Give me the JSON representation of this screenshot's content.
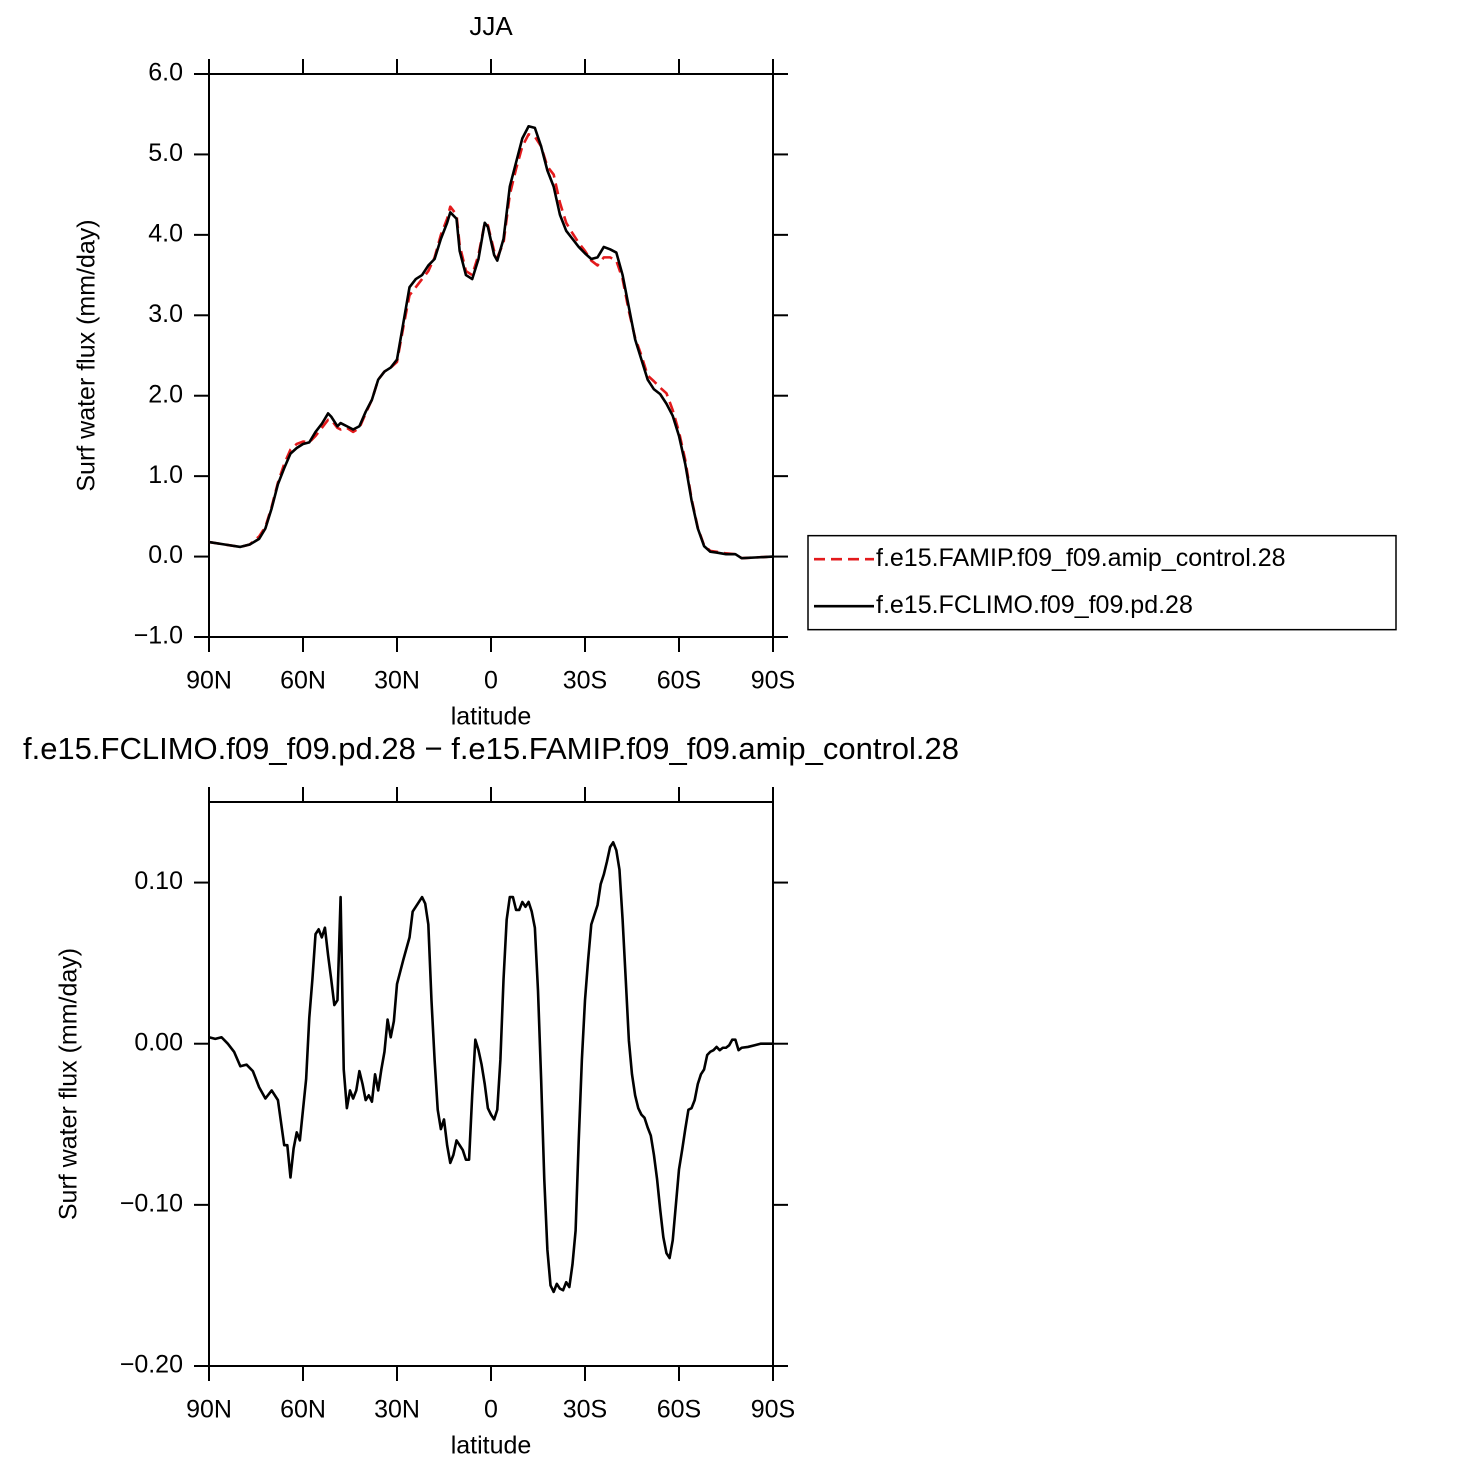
{
  "chart_data": [
    {
      "type": "line",
      "title": "JJA",
      "xlabel": "latitude",
      "ylabel": "Surf water flux (mm/day)",
      "xlim": [
        90,
        -90
      ],
      "ylim": [
        -1,
        6
      ],
      "xticks": [
        {
          "value": 90,
          "label": "90N"
        },
        {
          "value": 60,
          "label": "60N"
        },
        {
          "value": 30,
          "label": "30N"
        },
        0,
        {
          "value": -30,
          "label": "30S"
        },
        {
          "value": -60,
          "label": "60S"
        },
        {
          "value": -90,
          "label": "90S"
        }
      ],
      "yticks": [
        {
          "value": -1,
          "label": "−1.0"
        },
        {
          "value": 0,
          "label": "0.0"
        },
        {
          "value": 1,
          "label": "1.0"
        },
        {
          "value": 2,
          "label": "2.0"
        },
        {
          "value": 3,
          "label": "3.0"
        },
        {
          "value": 4,
          "label": "4.0"
        },
        {
          "value": 5,
          "label": "5.0"
        },
        {
          "value": 6,
          "label": "6.0"
        }
      ],
      "legend": "right",
      "x": [
        90,
        85,
        80,
        77,
        74,
        72,
        70,
        68,
        66,
        64,
        62,
        60,
        58,
        56,
        54,
        52,
        51,
        49,
        48,
        46,
        44,
        42,
        40,
        38,
        36,
        34,
        32,
        30,
        28,
        26,
        24,
        22,
        20,
        18,
        16,
        14,
        13,
        11,
        10,
        8,
        6,
        4,
        2,
        1,
        -1,
        -2,
        -4,
        -6,
        -8,
        -10,
        -12,
        -14,
        -16,
        -18,
        -20,
        -22,
        -24,
        -26,
        -28,
        -30,
        -32,
        -34,
        -36,
        -38,
        -40,
        -42,
        -44,
        -46,
        -48,
        -50,
        -52,
        -54,
        -56,
        -58,
        -60,
        -62,
        -64,
        -66,
        -68,
        -70,
        -72,
        -75,
        -78,
        -80,
        -85,
        -90
      ],
      "series": [
        {
          "name": "f.e15.FAMIP.f09_f09.amip_control.28",
          "color": "#e31a1c",
          "dashed": true,
          "values": [
            0.18,
            0.15,
            0.12,
            0.15,
            0.25,
            0.37,
            0.62,
            0.92,
            1.15,
            1.33,
            1.4,
            1.43,
            1.42,
            1.5,
            1.6,
            1.7,
            1.7,
            1.6,
            1.58,
            1.6,
            1.55,
            1.6,
            1.78,
            1.95,
            2.2,
            2.3,
            2.35,
            2.42,
            2.85,
            3.25,
            3.35,
            3.45,
            3.55,
            3.72,
            4.0,
            4.2,
            4.35,
            4.25,
            3.87,
            3.55,
            3.5,
            3.75,
            4.15,
            4.12,
            3.8,
            3.72,
            3.9,
            4.5,
            4.82,
            5.1,
            5.25,
            5.22,
            5.1,
            4.85,
            4.75,
            4.4,
            4.15,
            4.02,
            3.9,
            3.8,
            3.68,
            3.62,
            3.72,
            3.72,
            3.68,
            3.45,
            3.05,
            2.72,
            2.5,
            2.25,
            2.18,
            2.1,
            2.03,
            1.82,
            1.55,
            1.2,
            0.72,
            0.36,
            0.14,
            0.07,
            0.06,
            0.04,
            0.03,
            -0.02,
            -0.01,
            0.0
          ]
        },
        {
          "name": "f.e15.FCLIMO.f09_f09.pd.28",
          "color": "#000000",
          "dashed": false,
          "values": [
            0.18,
            0.15,
            0.12,
            0.15,
            0.22,
            0.35,
            0.6,
            0.9,
            1.1,
            1.28,
            1.35,
            1.4,
            1.42,
            1.55,
            1.65,
            1.78,
            1.74,
            1.62,
            1.66,
            1.62,
            1.58,
            1.62,
            1.8,
            1.95,
            2.2,
            2.3,
            2.35,
            2.45,
            2.9,
            3.35,
            3.45,
            3.5,
            3.62,
            3.7,
            3.95,
            4.15,
            4.28,
            4.2,
            3.8,
            3.5,
            3.45,
            3.7,
            4.15,
            4.1,
            3.75,
            3.68,
            3.95,
            4.6,
            4.9,
            5.2,
            5.35,
            5.33,
            5.1,
            4.8,
            4.6,
            4.25,
            4.05,
            3.95,
            3.85,
            3.77,
            3.7,
            3.72,
            3.85,
            3.82,
            3.78,
            3.5,
            3.1,
            2.7,
            2.45,
            2.2,
            2.08,
            2.02,
            1.9,
            1.75,
            1.5,
            1.15,
            0.7,
            0.35,
            0.13,
            0.06,
            0.05,
            0.03,
            0.03,
            -0.02,
            -0.01,
            0.0
          ]
        }
      ]
    },
    {
      "type": "line",
      "title": "f.e15.FCLIMO.f09_f09.pd.28 − f.e15.FAMIP.f09_f09.amip_control.28",
      "xlabel": "latitude",
      "ylabel": "Surf water flux (mm/day)",
      "xlim": [
        90,
        -90
      ],
      "ylim": [
        -0.2,
        0.15
      ],
      "xticks": [
        {
          "value": 90,
          "label": "90N"
        },
        {
          "value": 60,
          "label": "60N"
        },
        {
          "value": 30,
          "label": "30N"
        },
        0,
        {
          "value": -30,
          "label": "30S"
        },
        {
          "value": -60,
          "label": "60S"
        },
        {
          "value": -90,
          "label": "90S"
        }
      ],
      "yticks": [
        {
          "value": -0.2,
          "label": "−0.20"
        },
        {
          "value": -0.1,
          "label": "−0.10"
        },
        {
          "value": 0,
          "label": "0.00"
        },
        {
          "value": 0.1,
          "label": "0.10"
        }
      ],
      "color": "#000000",
      "x": [
        90,
        88,
        86,
        84,
        82,
        80,
        78,
        76,
        74,
        72,
        70,
        68,
        66,
        65,
        64,
        63,
        62,
        61,
        59,
        58,
        57,
        56,
        55,
        54,
        53,
        52,
        51,
        50,
        49,
        48,
        47,
        46,
        45,
        44,
        43,
        42,
        41,
        40,
        39,
        38,
        37,
        36,
        35,
        34,
        33,
        32,
        31,
        30,
        28,
        26,
        25,
        23,
        22,
        21,
        20,
        19,
        18,
        17,
        16,
        15,
        14,
        13,
        12,
        11,
        10,
        9,
        8,
        7,
        6,
        5,
        4,
        3,
        2,
        1,
        0,
        -1,
        -2,
        -3,
        -4,
        -5,
        -6,
        -7,
        -8,
        -9,
        -10,
        -11,
        -12,
        -13,
        -14,
        -15,
        -16,
        -17,
        -18,
        -19,
        -20,
        -21,
        -22,
        -23,
        -24,
        -25,
        -26,
        -27,
        -28,
        -29,
        -30,
        -31,
        -32,
        -34,
        -35,
        -36,
        -37,
        -38,
        -39,
        -40,
        -41,
        -42,
        -43,
        -44,
        -45,
        -46,
        -47,
        -48,
        -49,
        -50,
        -51,
        -52,
        -53,
        -54,
        -55,
        -56,
        -57,
        -58,
        -59,
        -60,
        -61,
        -62,
        -63,
        -64,
        -65,
        -66,
        -67,
        -68,
        -69,
        -70,
        -71,
        -72,
        -73,
        -74,
        -75,
        -76,
        -77,
        -78,
        -79,
        -80,
        -82,
        -84,
        -86,
        -90
      ],
      "values": [
        0.004,
        0.003,
        0.004,
        0,
        -0.005,
        -0.014,
        -0.013,
        -0.017,
        -0.027,
        -0.034,
        -0.029,
        -0.035,
        -0.063,
        -0.063,
        -0.083,
        -0.065,
        -0.055,
        -0.06,
        -0.022,
        0.016,
        0.04,
        0.068,
        0.071,
        0.066,
        0.072,
        0.055,
        0.04,
        0.024,
        0.027,
        0.091,
        -0.016,
        -0.04,
        -0.029,
        -0.034,
        -0.029,
        -0.017,
        -0.025,
        -0.035,
        -0.032,
        -0.036,
        -0.019,
        -0.029,
        -0.016,
        -0.005,
        0.015,
        0.004,
        0.014,
        0.037,
        0.052,
        0.066,
        0.082,
        0.088,
        0.091,
        0.087,
        0.074,
        0.027,
        -0.01,
        -0.041,
        -0.053,
        -0.047,
        -0.063,
        -0.074,
        -0.069,
        -0.06,
        -0.063,
        -0.066,
        -0.072,
        -0.072,
        -0.032,
        0.0025,
        -0.004,
        -0.013,
        -0.025,
        -0.04,
        -0.044,
        -0.047,
        -0.041,
        -0.01,
        0.04,
        0.077,
        0.091,
        0.091,
        0.083,
        0.083,
        0.088,
        0.085,
        0.088,
        0.082,
        0.072,
        0.033,
        -0.022,
        -0.084,
        -0.128,
        -0.15,
        -0.154,
        -0.149,
        -0.152,
        -0.153,
        -0.148,
        -0.151,
        -0.137,
        -0.116,
        -0.06,
        -0.01,
        0.027,
        0.052,
        0.074,
        0.086,
        0.099,
        0.105,
        0.113,
        0.122,
        0.125,
        0.12,
        0.108,
        0.077,
        0.04,
        0.002,
        -0.019,
        -0.032,
        -0.04,
        -0.044,
        -0.046,
        -0.052,
        -0.057,
        -0.069,
        -0.084,
        -0.103,
        -0.12,
        -0.13,
        -0.133,
        -0.122,
        -0.1,
        -0.078,
        -0.066,
        -0.053,
        -0.041,
        -0.04,
        -0.035,
        -0.025,
        -0.019,
        -0.016,
        -0.007,
        -0.005,
        -0.004,
        -0.002,
        -0.004,
        -0.0025,
        -0.0025,
        -0.001,
        0.0025,
        0.0025,
        -0.004,
        -0.0025,
        -0.002,
        -0.001,
        0,
        0
      ]
    }
  ]
}
